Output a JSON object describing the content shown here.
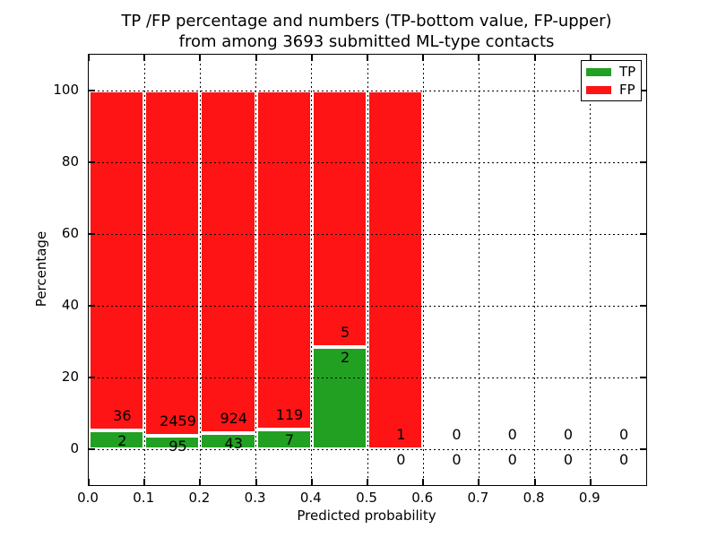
{
  "chart_data": {
    "type": "bar",
    "stacked": true,
    "title": [
      "TP /FP percentage and numbers (TP-bottom value, FP-upper)",
      "from among 3693 submitted ML-type contacts"
    ],
    "xlabel": "Predicted probability",
    "ylabel": "Percentage",
    "xlim": [
      0.0,
      1.0
    ],
    "ylim": [
      -10,
      110
    ],
    "grid": "dotted",
    "x_ticks": [
      {
        "v": 0.0,
        "label": "0.0"
      },
      {
        "v": 0.1,
        "label": "0.1"
      },
      {
        "v": 0.2,
        "label": "0.2"
      },
      {
        "v": 0.3,
        "label": "0.3"
      },
      {
        "v": 0.4,
        "label": "0.4"
      },
      {
        "v": 0.5,
        "label": "0.5"
      },
      {
        "v": 0.6,
        "label": "0.6"
      },
      {
        "v": 0.7,
        "label": "0.7"
      },
      {
        "v": 0.8,
        "label": "0.8"
      },
      {
        "v": 0.9,
        "label": "0.9"
      }
    ],
    "y_ticks": [
      {
        "v": 0,
        "label": "0"
      },
      {
        "v": 20,
        "label": "20"
      },
      {
        "v": 40,
        "label": "40"
      },
      {
        "v": 60,
        "label": "60"
      },
      {
        "v": 80,
        "label": "80"
      },
      {
        "v": 100,
        "label": "100"
      }
    ],
    "legend": {
      "position": "upper right",
      "items": [
        {
          "label": "TP",
          "color": "#22a022"
        },
        {
          "label": "FP",
          "color": "#fe1414"
        }
      ]
    },
    "colors": {
      "tp": "#22a022",
      "fp": "#fe1414",
      "bar_edge": "#ffffff",
      "grid": "#000000",
      "text": "#000000"
    },
    "bins": [
      {
        "x_start": 0.0,
        "x_end": 0.1,
        "tp": 2,
        "fp": 36,
        "tp_pct": 5.26,
        "fp_pct": 94.74
      },
      {
        "x_start": 0.1,
        "x_end": 0.2,
        "tp": 95,
        "fp": 2459,
        "tp_pct": 3.72,
        "fp_pct": 96.28
      },
      {
        "x_start": 0.2,
        "x_end": 0.3,
        "tp": 43,
        "fp": 924,
        "tp_pct": 4.45,
        "fp_pct": 95.55
      },
      {
        "x_start": 0.3,
        "x_end": 0.4,
        "tp": 7,
        "fp": 119,
        "tp_pct": 5.56,
        "fp_pct": 94.44
      },
      {
        "x_start": 0.4,
        "x_end": 0.5,
        "tp": 2,
        "fp": 5,
        "tp_pct": 28.57,
        "fp_pct": 71.43
      },
      {
        "x_start": 0.5,
        "x_end": 0.6,
        "tp": 0,
        "fp": 1,
        "tp_pct": 0,
        "fp_pct": 100
      },
      {
        "x_start": 0.6,
        "x_end": 0.7,
        "tp": 0,
        "fp": 0,
        "tp_pct": 0,
        "fp_pct": 0
      },
      {
        "x_start": 0.7,
        "x_end": 0.8,
        "tp": 0,
        "fp": 0,
        "tp_pct": 0,
        "fp_pct": 0
      },
      {
        "x_start": 0.8,
        "x_end": 0.9,
        "tp": 0,
        "fp": 0,
        "tp_pct": 0,
        "fp_pct": 0
      },
      {
        "x_start": 0.9,
        "x_end": 1.0,
        "tp": 0,
        "fp": 0,
        "tp_pct": 0,
        "fp_pct": 0
      }
    ]
  }
}
